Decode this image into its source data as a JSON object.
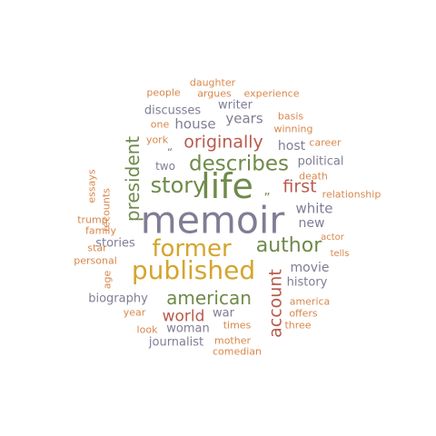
{
  "palette": {
    "olive": "#6f8a4a",
    "gold": "#d4a52e",
    "rust": "#b95a4c",
    "slate": "#7f7d95",
    "orange": "#d8874b"
  },
  "words": [
    {
      "text": "memoir",
      "color": "#7f7d95"
    },
    {
      "text": "life",
      "color": "#6f8a4a"
    },
    {
      "text": "published",
      "color": "#d4a52e"
    },
    {
      "text": "former",
      "color": "#d4a52e"
    },
    {
      "text": "story",
      "color": "#6f8a4a"
    },
    {
      "text": "describes",
      "color": "#6f8a4a"
    },
    {
      "text": "author",
      "color": "#6f8a4a"
    },
    {
      "text": "originally",
      "color": "#b95a4c"
    },
    {
      "text": "american",
      "color": "#6f8a4a"
    },
    {
      "text": "president",
      "color": "#6f8a4a"
    },
    {
      "text": "account",
      "color": "#b95a4c"
    },
    {
      "text": "first",
      "color": "#b95a4c"
    },
    {
      "text": "world",
      "color": "#b95a4c"
    },
    {
      "text": "house",
      "color": "#7f7d95"
    },
    {
      "text": "years",
      "color": "#7f7d95"
    },
    {
      "text": "white",
      "color": "#7f7d95"
    },
    {
      "text": "new",
      "color": "#7f7d95"
    },
    {
      "text": "movie",
      "color": "#7f7d95"
    },
    {
      "text": "history",
      "color": "#7f7d95"
    },
    {
      "text": "political",
      "color": "#7f7d95"
    },
    {
      "text": "host",
      "color": "#7f7d95"
    },
    {
      "text": "writer",
      "color": "#7f7d95"
    },
    {
      "text": "discusses",
      "color": "#7f7d95"
    },
    {
      "text": "stories",
      "color": "#7f7d95"
    },
    {
      "text": "biography",
      "color": "#7f7d95"
    },
    {
      "text": "war",
      "color": "#7f7d95"
    },
    {
      "text": "woman",
      "color": "#7f7d95"
    },
    {
      "text": "journalist",
      "color": "#7f7d95"
    },
    {
      "text": "two",
      "color": "#7f7d95"
    },
    {
      "text": "“",
      "color": "#7f7d95"
    },
    {
      "text": "„",
      "color": "#6f8a4a"
    },
    {
      "text": "daughter",
      "color": "#d8874b"
    },
    {
      "text": "people",
      "color": "#d8874b"
    },
    {
      "text": "argues",
      "color": "#d8874b"
    },
    {
      "text": "experience",
      "color": "#d8874b"
    },
    {
      "text": "basis",
      "color": "#d8874b"
    },
    {
      "text": "winning",
      "color": "#d8874b"
    },
    {
      "text": "one",
      "color": "#d8874b"
    },
    {
      "text": "york",
      "color": "#d8874b"
    },
    {
      "text": "career",
      "color": "#d8874b"
    },
    {
      "text": "death",
      "color": "#d8874b"
    },
    {
      "text": "relationship",
      "color": "#d8874b"
    },
    {
      "text": "essays",
      "color": "#d8874b"
    },
    {
      "text": "recounts",
      "color": "#d8874b"
    },
    {
      "text": "trump",
      "color": "#d8874b"
    },
    {
      "text": "family",
      "color": "#d8874b"
    },
    {
      "text": "star",
      "color": "#d8874b"
    },
    {
      "text": "personal",
      "color": "#d8874b"
    },
    {
      "text": "age",
      "color": "#d8874b"
    },
    {
      "text": "year",
      "color": "#d8874b"
    },
    {
      "text": "look",
      "color": "#d8874b"
    },
    {
      "text": "times",
      "color": "#d8874b"
    },
    {
      "text": "mother",
      "color": "#d8874b"
    },
    {
      "text": "comedian",
      "color": "#d8874b"
    },
    {
      "text": "actor",
      "color": "#d8874b"
    },
    {
      "text": "tells",
      "color": "#d8874b"
    },
    {
      "text": "america",
      "color": "#d8874b"
    },
    {
      "text": "offers",
      "color": "#d8874b"
    },
    {
      "text": "three",
      "color": "#d8874b"
    }
  ]
}
